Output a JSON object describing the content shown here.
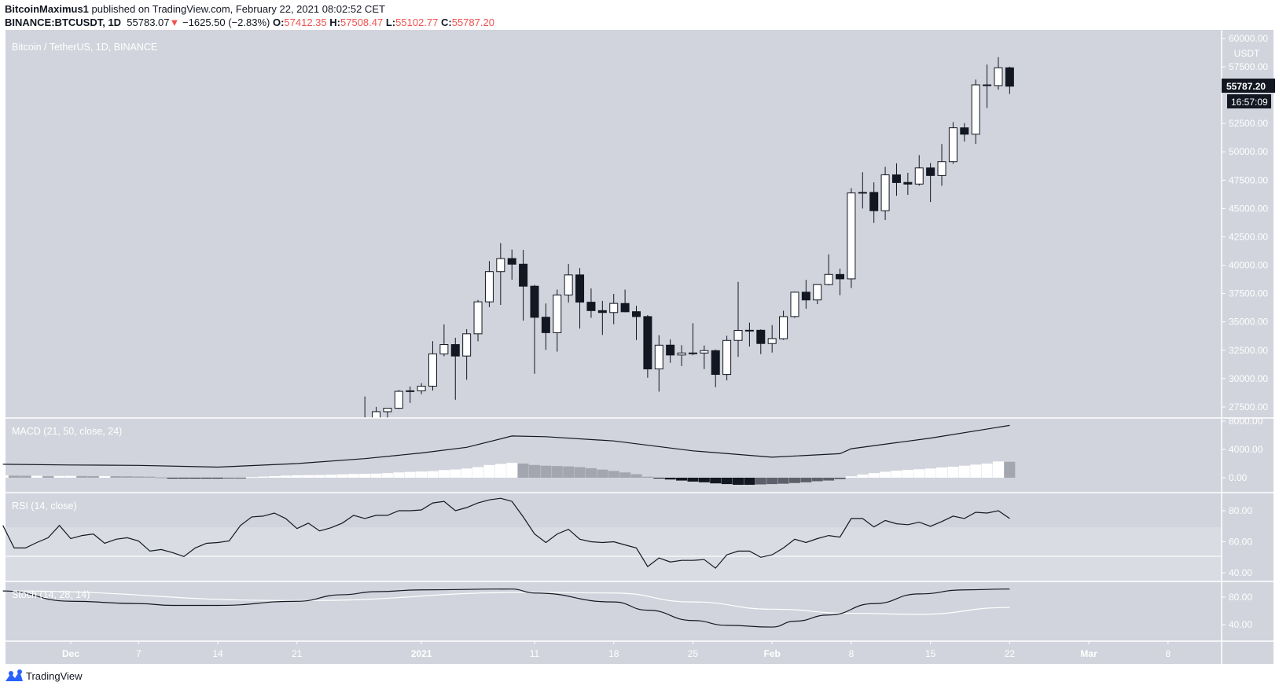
{
  "header": {
    "author": "BitcoinMaximus1",
    "published": "published on TradingView.com, February 22, 2021 08:02:52 CET",
    "symbol": "BINANCE:BTCUSDT, 1D",
    "last": "55783.07",
    "change": "−1625.50 (−2.83%)",
    "o_label": "O:",
    "o": "57412.35",
    "h_label": "H:",
    "h": "57508.47",
    "l_label": "L:",
    "l": "55102.77",
    "c_label": "C:",
    "c": "55787.20"
  },
  "main_pane": {
    "title": "Bitcoin / TetherUS, 1D, BINANCE",
    "currency": "USDT",
    "price_ticks": [
      "60000.00",
      "57500.00",
      "52500.00",
      "50000.00",
      "47500.00",
      "45000.00",
      "42500.00",
      "40000.00",
      "37500.00",
      "35000.00",
      "32500.00",
      "30000.00",
      "27500.00"
    ],
    "last_price_label": "55787.20",
    "countdown": "16:57:09"
  },
  "macd_pane": {
    "title": "MACD (21, 50, close, 24)",
    "ticks": [
      "8000.00",
      "4000.00",
      "0.00"
    ]
  },
  "rsi_pane": {
    "title": "RSI (14, close)",
    "ticks": [
      "80.00",
      "60.00",
      "40.00"
    ]
  },
  "stoch_pane": {
    "title": "Stoch (14, 28, 14)",
    "ticks": [
      "80.00",
      "40.00"
    ]
  },
  "time_axis": [
    "Dec",
    "7",
    "14",
    "21",
    "2021",
    "11",
    "18",
    "25",
    "Feb",
    "8",
    "15",
    "22",
    "Mar",
    "8"
  ],
  "footer": {
    "brand": "TradingView"
  },
  "colors": {
    "bg": "#d1d4dc",
    "bull": "#ffffff",
    "bear": "#131722",
    "down": "#ef5350",
    "brand": "#2962ff"
  },
  "chart_data": [
    {
      "type": "candlestick",
      "title": "Bitcoin / TetherUS, 1D, BINANCE",
      "ylim": [
        26500,
        61000
      ],
      "columns": [
        "date",
        "open",
        "high",
        "low",
        "close"
      ],
      "candles": [
        [
          "2020-12-27",
          26493,
          28422,
          25700,
          26281
        ],
        [
          "2020-12-28",
          26281,
          27500,
          26101,
          27079
        ],
        [
          "2020-12-29",
          27079,
          27410,
          25880,
          27385
        ],
        [
          "2020-12-30",
          27385,
          28996,
          27320,
          28875
        ],
        [
          "2020-12-31",
          28875,
          29300,
          27850,
          28923
        ],
        [
          "2021-01-01",
          28923,
          29600,
          28624,
          29331
        ],
        [
          "2021-01-02",
          29331,
          33300,
          28946,
          32178
        ],
        [
          "2021-01-03",
          32176,
          34778,
          31963,
          33000
        ],
        [
          "2021-01-04",
          33000,
          33600,
          28130,
          31988
        ],
        [
          "2021-01-05",
          31989,
          34360,
          29900,
          33949
        ],
        [
          "2021-01-06",
          33950,
          36939,
          33288,
          36769
        ],
        [
          "2021-01-07",
          36769,
          40365,
          36300,
          39432
        ],
        [
          "2021-01-08",
          39432,
          41950,
          36500,
          40582
        ],
        [
          "2021-01-09",
          40586,
          41380,
          38720,
          40088
        ],
        [
          "2021-01-10",
          40088,
          41350,
          35111,
          38150
        ],
        [
          "2021-01-11",
          38150,
          38264,
          30420,
          35404
        ],
        [
          "2021-01-12",
          35410,
          36628,
          32531,
          34051
        ],
        [
          "2021-01-13",
          34049,
          37850,
          32380,
          37371
        ],
        [
          "2021-01-14",
          37371,
          40100,
          36701,
          39144
        ],
        [
          "2021-01-15",
          39145,
          39747,
          34408,
          36742
        ],
        [
          "2021-01-16",
          36737,
          37950,
          35357,
          35994
        ],
        [
          "2021-01-17",
          35994,
          36852,
          33850,
          35828
        ],
        [
          "2021-01-18",
          35825,
          37469,
          34800,
          36631
        ],
        [
          "2021-01-19",
          36622,
          37850,
          35844,
          35891
        ],
        [
          "2021-01-20",
          35901,
          36415,
          33400,
          35468
        ],
        [
          "2021-01-21",
          35468,
          35600,
          30071,
          30850
        ],
        [
          "2021-01-22",
          30852,
          33826,
          28850,
          32945
        ],
        [
          "2021-01-23",
          32950,
          33456,
          31390,
          32078
        ],
        [
          "2021-01-24",
          32078,
          32944,
          31106,
          32259
        ],
        [
          "2021-01-25",
          32259,
          34875,
          32053,
          32254
        ],
        [
          "2021-01-26",
          32254,
          32921,
          30837,
          32467
        ],
        [
          "2021-01-27",
          32464,
          32557,
          29241,
          30366
        ],
        [
          "2021-01-28",
          30362,
          33783,
          29842,
          33364
        ],
        [
          "2021-01-29",
          33368,
          38531,
          31915,
          34252
        ],
        [
          "2021-01-30",
          34247,
          34933,
          32825,
          34262
        ],
        [
          "2021-01-31",
          34262,
          34342,
          32157,
          33092
        ],
        [
          "2021-02-01",
          33092,
          34717,
          32296,
          33526
        ],
        [
          "2021-02-02",
          33517,
          35984,
          33418,
          35466
        ],
        [
          "2021-02-03",
          35472,
          37662,
          35362,
          37618
        ],
        [
          "2021-02-04",
          37620,
          38708,
          36161,
          36936
        ],
        [
          "2021-02-05",
          36936,
          38310,
          36570,
          38290
        ],
        [
          "2021-02-06",
          38289,
          40955,
          38215,
          39186
        ],
        [
          "2021-02-07",
          39181,
          39700,
          37351,
          38795
        ],
        [
          "2021-02-08",
          38795,
          46794,
          37988,
          46374
        ],
        [
          "2021-02-09",
          46374,
          48200,
          45000,
          46420
        ],
        [
          "2021-02-10",
          46420,
          47310,
          43727,
          44807
        ],
        [
          "2021-02-11",
          44807,
          48678,
          43994,
          47969
        ],
        [
          "2021-02-12",
          47968,
          48985,
          46125,
          47287
        ],
        [
          "2021-02-13",
          47298,
          48150,
          46202,
          47153
        ],
        [
          "2021-02-14",
          47157,
          49707,
          47014,
          48577
        ],
        [
          "2021-02-15",
          48580,
          49010,
          45570,
          47911
        ],
        [
          "2021-02-16",
          47911,
          50689,
          47003,
          49133
        ],
        [
          "2021-02-17",
          49134,
          52618,
          48947,
          52119
        ],
        [
          "2021-02-18",
          52117,
          52530,
          50901,
          51552
        ],
        [
          "2021-02-19",
          51552,
          56368,
          50710,
          55906
        ],
        [
          "2021-02-20",
          55906,
          57700,
          53863,
          55841
        ],
        [
          "2021-02-21",
          55841,
          58352,
          55477,
          57412
        ],
        [
          "2021-02-22",
          57412,
          57508,
          55102,
          55787
        ]
      ]
    },
    {
      "type": "line+bar",
      "title": "MACD (21, 50, close, 24)",
      "ylim": [
        -1500,
        8500
      ],
      "start_date": "2020-11-25",
      "macd_line": [
        [
          "2020-11-25",
          1900
        ],
        [
          "2020-12-01",
          1800
        ],
        [
          "2020-12-07",
          1750
        ],
        [
          "2020-12-14",
          1500
        ],
        [
          "2020-12-21",
          2000
        ],
        [
          "2020-12-27",
          2700
        ],
        [
          "2021-01-01",
          3500
        ],
        [
          "2021-01-05",
          4300
        ],
        [
          "2021-01-09",
          5900
        ],
        [
          "2021-01-12",
          5800
        ],
        [
          "2021-01-18",
          5200
        ],
        [
          "2021-01-25",
          3800
        ],
        [
          "2021-02-01",
          2900
        ],
        [
          "2021-02-07",
          3400
        ],
        [
          "2021-02-08",
          4100
        ],
        [
          "2021-02-15",
          5600
        ],
        [
          "2021-02-22",
          7400
        ]
      ],
      "histogram": [
        330,
        300,
        280,
        280,
        220,
        250,
        260,
        240,
        220,
        230,
        220,
        210,
        180,
        150,
        40,
        -60,
        -70,
        -80,
        -80,
        -90,
        -60,
        -40,
        100,
        160,
        230,
        300,
        350,
        370,
        380,
        420,
        480,
        530,
        560,
        580,
        650,
        750,
        820,
        870,
        930,
        1080,
        1160,
        1300,
        1500,
        1800,
        1950,
        2100,
        2000,
        1800,
        1700,
        1650,
        1600,
        1500,
        1350,
        1150,
        950,
        750,
        500,
        150,
        -100,
        -250,
        -400,
        -550,
        -650,
        -800,
        -900,
        -1000,
        -1000,
        -950,
        -900,
        -850,
        -750,
        -650,
        -500,
        -400,
        -200,
        200,
        450,
        650,
        850,
        1000,
        1100,
        1200,
        1300,
        1450,
        1550,
        1700,
        1850,
        2000,
        2300,
        2250
      ]
    },
    {
      "type": "line",
      "title": "RSI (14, close)",
      "ylim": [
        35,
        92
      ],
      "bands": [
        50,
        70
      ],
      "start_date": "2020-11-25",
      "values": [
        70.5,
        56,
        56,
        59.5,
        62.6,
        70.5,
        62,
        64,
        65,
        59,
        61.6,
        62.6,
        60.5,
        54,
        55,
        53,
        50.5,
        56,
        59,
        59.5,
        60.5,
        70.5,
        76,
        76.5,
        78.5,
        75,
        68.5,
        72,
        67,
        69,
        72,
        77,
        75,
        77,
        77,
        80,
        80,
        80.5,
        85,
        86,
        80,
        82,
        85,
        87,
        88,
        86,
        76,
        65,
        59.5,
        65,
        68,
        61.6,
        60,
        59.5,
        60,
        58,
        56,
        44,
        49.5,
        47,
        48,
        48,
        48.5,
        43,
        51.6,
        54,
        54,
        50,
        51.6,
        56,
        61.6,
        59.5,
        62,
        64,
        63,
        75,
        75,
        69.5,
        73.7,
        71.6,
        71,
        72.6,
        70,
        73,
        76.5,
        75,
        79,
        78.5,
        80,
        75
      ]
    },
    {
      "type": "line",
      "title": "Stoch (14, 28, 14)",
      "ylim": [
        18,
        103
      ],
      "k": [
        [
          "2020-11-25",
          89
        ],
        [
          "2020-12-01",
          74
        ],
        [
          "2020-12-07",
          70.6
        ],
        [
          "2020-12-10",
          68
        ],
        [
          "2020-12-14",
          68
        ],
        [
          "2020-12-21",
          74
        ],
        [
          "2020-12-25",
          83.5
        ],
        [
          "2020-12-28",
          88
        ],
        [
          "2021-01-01",
          90.6
        ],
        [
          "2021-01-09",
          91.8
        ],
        [
          "2021-01-11",
          86
        ],
        [
          "2021-01-18",
          73
        ],
        [
          "2021-01-21",
          61
        ],
        [
          "2021-01-25",
          46
        ],
        [
          "2021-01-28",
          39
        ],
        [
          "2021-02-01",
          36.5
        ],
        [
          "2021-02-03",
          45
        ],
        [
          "2021-02-06",
          54
        ],
        [
          "2021-02-10",
          70.6
        ],
        [
          "2021-02-14",
          84.7
        ],
        [
          "2021-02-18",
          90.6
        ],
        [
          "2021-02-22",
          91.8
        ]
      ],
      "d": [
        [
          "2020-11-25",
          89
        ],
        [
          "2020-12-21",
          75
        ],
        [
          "2021-01-11",
          87
        ],
        [
          "2021-01-18",
          86
        ],
        [
          "2021-01-25",
          73
        ],
        [
          "2021-02-01",
          62.5
        ],
        [
          "2021-02-08",
          56.5
        ],
        [
          "2021-02-14",
          55
        ],
        [
          "2021-02-22",
          65
        ]
      ]
    }
  ]
}
